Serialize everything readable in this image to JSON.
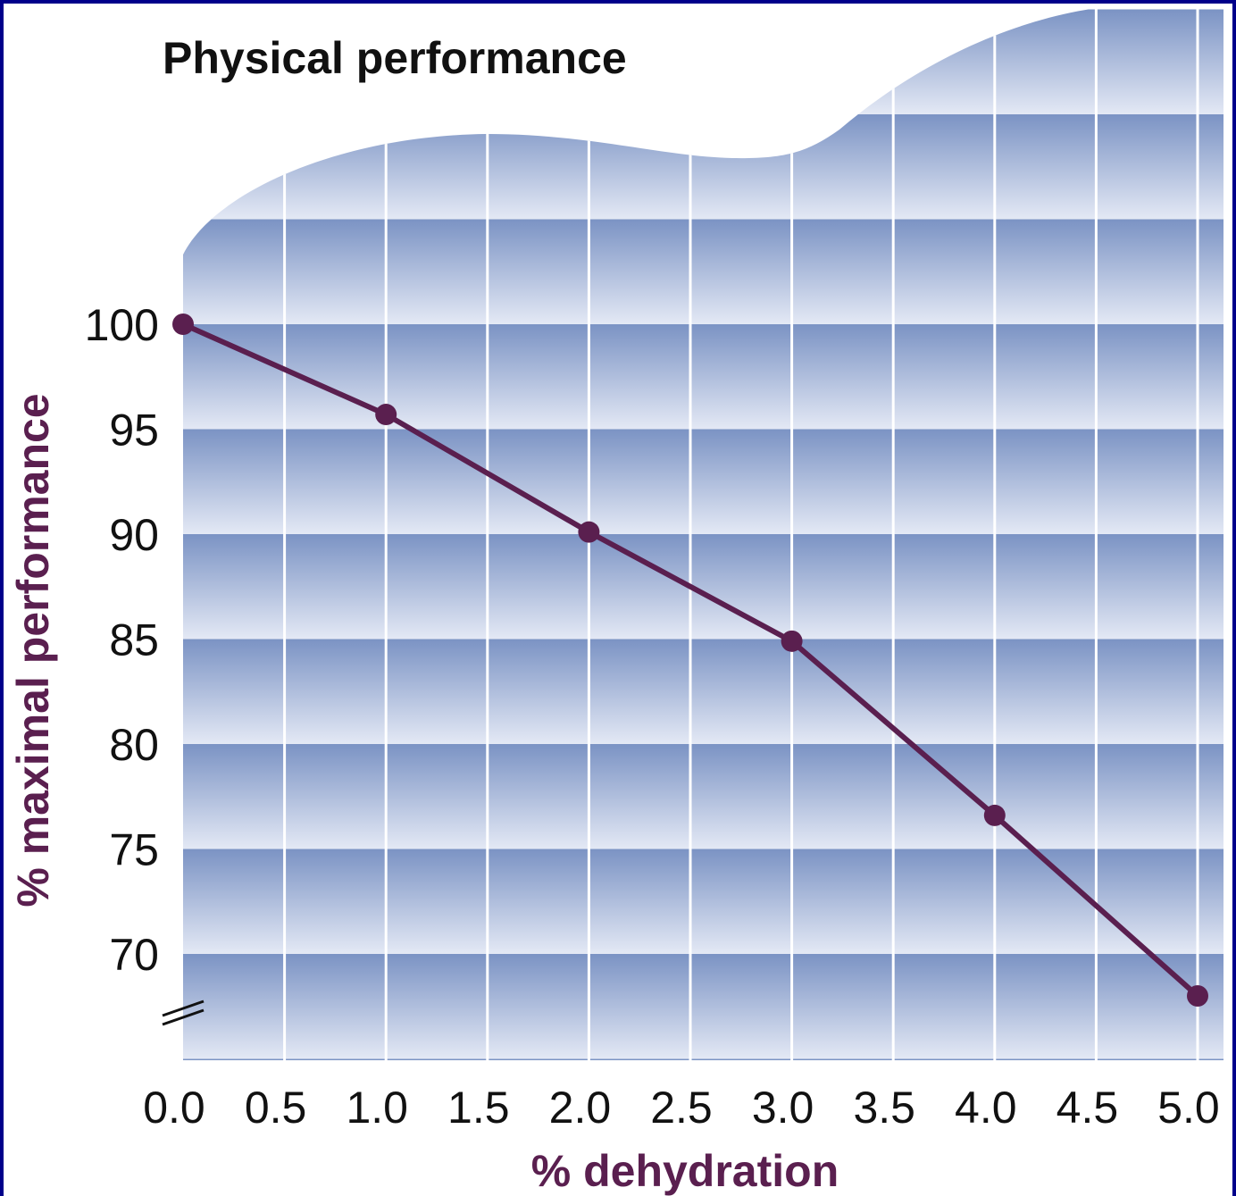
{
  "chart_data": {
    "type": "line",
    "title": "Physical performance",
    "xlabel": "% dehydration",
    "ylabel": "% maximal performance",
    "x_ticks": [
      "0.0",
      "0.5",
      "1.0",
      "1.5",
      "2.0",
      "2.5",
      "3.0",
      "3.5",
      "4.0",
      "4.5",
      "5.0"
    ],
    "y_ticks": [
      "100",
      "95",
      "90",
      "85",
      "80",
      "75",
      "70"
    ],
    "xlim": [
      0,
      5
    ],
    "ylim": [
      70,
      100
    ],
    "y_axis_break": true,
    "grid": true,
    "series": [
      {
        "x": [
          0,
          1,
          2,
          3,
          4,
          5
        ],
        "y": [
          100,
          95.7,
          90.1,
          84.9,
          76.6,
          68.0
        ]
      }
    ],
    "colors": {
      "line": "#5a1f4f",
      "marker": "#5a1f4f",
      "axis_label": "#5a1f4f",
      "band_dark": "#7b93c4",
      "band_light": "#e4e9f5",
      "grid": "#ffffff",
      "border": "#00008a"
    }
  }
}
